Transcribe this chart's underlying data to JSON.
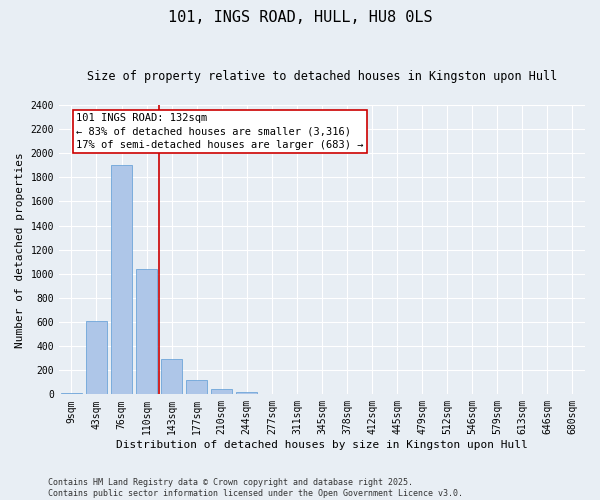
{
  "title": "101, INGS ROAD, HULL, HU8 0LS",
  "subtitle": "Size of property relative to detached houses in Kingston upon Hull",
  "xlabel": "Distribution of detached houses by size in Kingston upon Hull",
  "ylabel": "Number of detached properties",
  "footer": "Contains HM Land Registry data © Crown copyright and database right 2025.\nContains public sector information licensed under the Open Government Licence v3.0.",
  "categories": [
    "9sqm",
    "43sqm",
    "76sqm",
    "110sqm",
    "143sqm",
    "177sqm",
    "210sqm",
    "244sqm",
    "277sqm",
    "311sqm",
    "345sqm",
    "378sqm",
    "412sqm",
    "445sqm",
    "479sqm",
    "512sqm",
    "546sqm",
    "579sqm",
    "613sqm",
    "646sqm",
    "680sqm"
  ],
  "values": [
    15,
    605,
    1900,
    1040,
    295,
    115,
    47,
    20,
    0,
    0,
    0,
    0,
    0,
    0,
    0,
    0,
    0,
    0,
    0,
    0,
    0
  ],
  "bar_color": "#aec6e8",
  "bar_edge_color": "#5b9bd5",
  "background_color": "#e8eef4",
  "grid_color": "#ffffff",
  "vline_color": "#cc0000",
  "vline_x_index": 3.5,
  "annotation_text": "101 INGS ROAD: 132sqm\n← 83% of detached houses are smaller (3,316)\n17% of semi-detached houses are larger (683) →",
  "annotation_box_color": "#cc0000",
  "ylim": [
    0,
    2400
  ],
  "yticks": [
    0,
    200,
    400,
    600,
    800,
    1000,
    1200,
    1400,
    1600,
    1800,
    2000,
    2200,
    2400
  ],
  "title_fontsize": 11,
  "subtitle_fontsize": 8.5,
  "xlabel_fontsize": 8,
  "ylabel_fontsize": 8,
  "tick_fontsize": 7,
  "annotation_fontsize": 7.5,
  "footer_fontsize": 6
}
